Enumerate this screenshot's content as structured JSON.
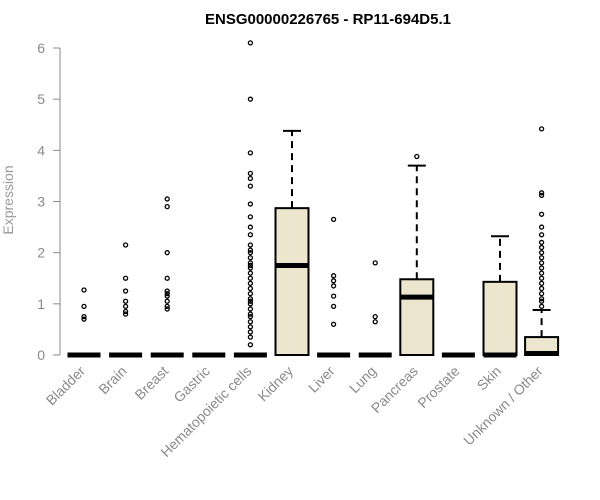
{
  "chart_data": {
    "type": "box",
    "title": "ENSG00000226765 - RP11-694D5.1",
    "ylabel": "Expression",
    "xlabel": "",
    "ylim": [
      0,
      6
    ],
    "yticks": [
      0,
      1,
      2,
      3,
      4,
      5,
      6
    ],
    "grid": false,
    "legend": "none",
    "box_fill": "#ede6cf",
    "line_color": "#000000",
    "categories": [
      "Bladder",
      "Brain",
      "Breast",
      "Gastric",
      "Hematopoietic cells",
      "Kidney",
      "Liver",
      "Lung",
      "Pancreas",
      "Prostate",
      "Skin",
      "Unknown / Other"
    ],
    "boxes": [
      {
        "q1": 0,
        "median": 0,
        "q3": 0,
        "whisker_low": 0,
        "whisker_high": 0,
        "outliers": [
          0.7,
          0.75,
          0.95,
          1.27
        ]
      },
      {
        "q1": 0,
        "median": 0,
        "q3": 0,
        "whisker_low": 0,
        "whisker_high": 0,
        "outliers": [
          0.8,
          0.85,
          0.95,
          1.05,
          1.25,
          1.5,
          2.15
        ]
      },
      {
        "q1": 0,
        "median": 0,
        "q3": 0,
        "whisker_low": 0,
        "whisker_high": 0,
        "outliers": [
          0.9,
          0.95,
          1.05,
          1.15,
          1.2,
          1.25,
          1.5,
          2.0,
          2.9,
          3.05
        ]
      },
      {
        "q1": 0,
        "median": 0,
        "q3": 0,
        "whisker_low": 0,
        "whisker_high": 0,
        "outliers": []
      },
      {
        "q1": 0,
        "median": 0,
        "q3": 0,
        "whisker_low": 0,
        "whisker_high": 0,
        "outliers": [
          0.2,
          0.35,
          0.45,
          0.55,
          0.65,
          0.75,
          0.8,
          0.9,
          1.0,
          1.05,
          1.1,
          1.2,
          1.3,
          1.4,
          1.5,
          1.6,
          1.7,
          1.75,
          1.8,
          1.9,
          2.0,
          2.05,
          2.15,
          2.35,
          2.5,
          2.7,
          2.95,
          3.3,
          3.45,
          3.55,
          3.95,
          5.0,
          6.1
        ]
      },
      {
        "q1": 0,
        "median": 1.75,
        "q3": 2.87,
        "whisker_low": 0,
        "whisker_high": 4.38,
        "outliers": []
      },
      {
        "q1": 0,
        "median": 0,
        "q3": 0,
        "whisker_low": 0,
        "whisker_high": 0,
        "outliers": [
          0.6,
          0.95,
          1.15,
          1.35,
          1.45,
          1.55,
          2.65
        ]
      },
      {
        "q1": 0,
        "median": 0,
        "q3": 0,
        "whisker_low": 0,
        "whisker_high": 0,
        "outliers": [
          0.65,
          0.75,
          1.8
        ]
      },
      {
        "q1": 0,
        "median": 1.13,
        "q3": 1.48,
        "whisker_low": 0,
        "whisker_high": 3.7,
        "outliers": [
          3.88
        ]
      },
      {
        "q1": 0,
        "median": 0,
        "q3": 0,
        "whisker_low": 0,
        "whisker_high": 0,
        "outliers": []
      },
      {
        "q1": 0,
        "median": 0,
        "q3": 1.43,
        "whisker_low": 0,
        "whisker_high": 2.32,
        "outliers": []
      },
      {
        "q1": 0,
        "median": 0.03,
        "q3": 0.35,
        "whisker_low": 0,
        "whisker_high": 0.88,
        "outliers": [
          0.95,
          1.05,
          1.1,
          1.2,
          1.3,
          1.4,
          1.5,
          1.6,
          1.7,
          1.8,
          1.9,
          2.0,
          2.1,
          2.2,
          2.35,
          2.5,
          2.75,
          3.12,
          3.17,
          4.42
        ]
      }
    ]
  }
}
